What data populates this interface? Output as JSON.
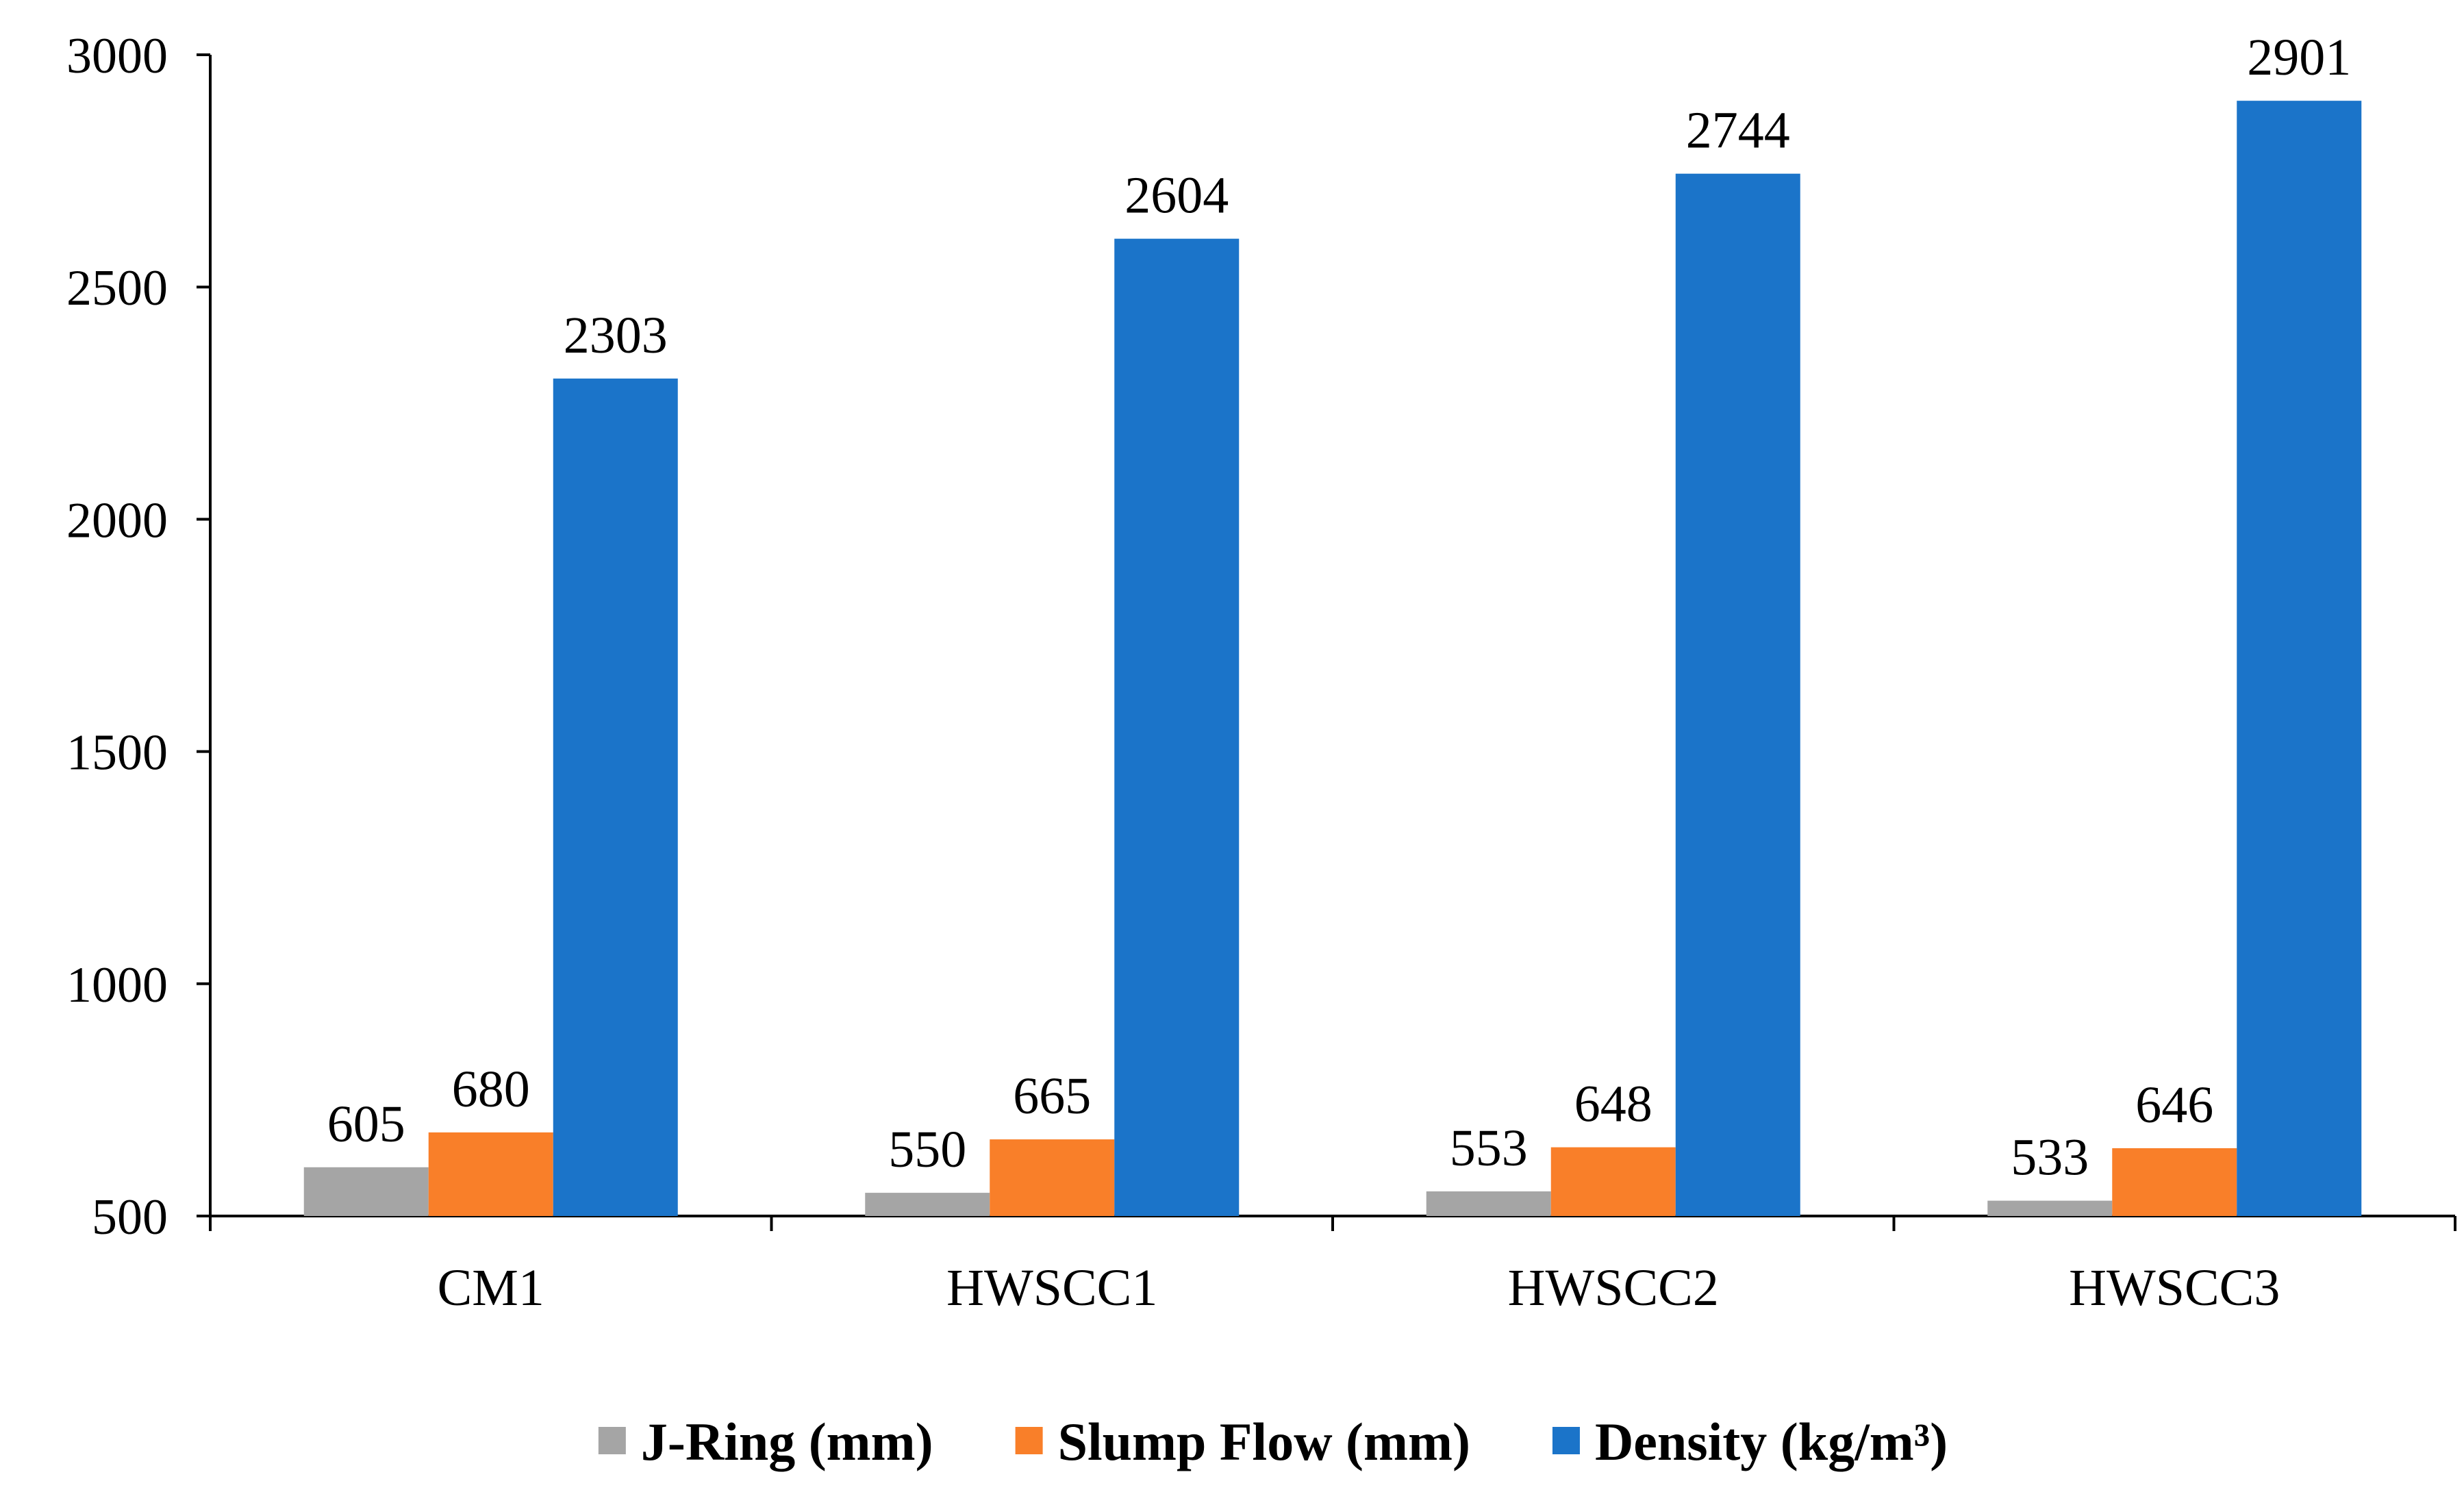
{
  "chart_data": {
    "type": "bar",
    "title": "",
    "xlabel": "",
    "ylabel": "",
    "categories": [
      "CM1",
      "HWSCC1",
      "HWSCC2",
      "HWSCC3"
    ],
    "ylim": [
      500,
      3000
    ],
    "yticks": [
      500,
      1000,
      1500,
      2000,
      2500,
      3000
    ],
    "grid": false,
    "legend_position": "bottom",
    "series": [
      {
        "name": "J-Ring (mm)",
        "color": "#a5a5a5",
        "values": [
          605,
          550,
          553,
          533
        ]
      },
      {
        "name": "Slump Flow (mm)",
        "color": "#f97f29",
        "values": [
          680,
          665,
          648,
          646
        ]
      },
      {
        "name": "Density (kg/m³)",
        "color": "#1b74c9",
        "values": [
          2303,
          2604,
          2744,
          2901
        ]
      }
    ]
  }
}
